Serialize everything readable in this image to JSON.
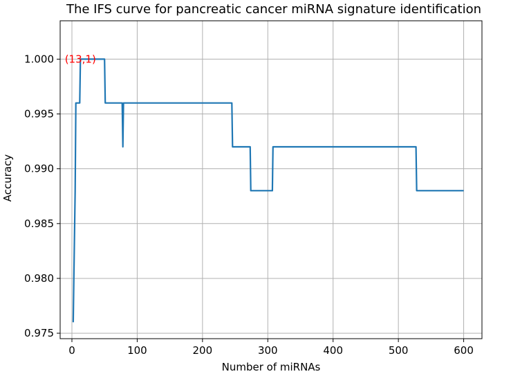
{
  "chart_data": {
    "type": "line",
    "title": "The IFS curve for pancreatic cancer miRNA signature identification",
    "xlabel": "Number of miRNAs",
    "ylabel": "Accuracy",
    "xlim": [
      -18,
      628
    ],
    "ylim": [
      0.9745,
      1.0035
    ],
    "xticks": [
      0,
      100,
      200,
      300,
      400,
      500,
      600
    ],
    "yticks": [
      0.975,
      0.98,
      0.985,
      0.99,
      0.995,
      1.0
    ],
    "xtick_labels": [
      "0",
      "100",
      "200",
      "300",
      "400",
      "500",
      "600"
    ],
    "ytick_labels": [
      "0.975",
      "0.980",
      "0.985",
      "0.990",
      "0.995",
      "1.000"
    ],
    "grid": true,
    "series": [
      {
        "color": "#1f77b4",
        "x": [
          2,
          3,
          5,
          6,
          12,
          13,
          50,
          51,
          77,
          78,
          79,
          245,
          246,
          273,
          274,
          307,
          308,
          527,
          528,
          600
        ],
        "y": [
          0.976,
          0.98,
          0.988,
          0.996,
          0.996,
          1.0,
          1.0,
          0.996,
          0.996,
          0.992,
          0.996,
          0.996,
          0.992,
          0.992,
          0.988,
          0.988,
          0.992,
          0.992,
          0.988,
          0.988
        ]
      }
    ],
    "annotations": [
      {
        "text": "(13,1)",
        "x": 13,
        "y": 1.0,
        "color": "#ff0000"
      }
    ]
  }
}
